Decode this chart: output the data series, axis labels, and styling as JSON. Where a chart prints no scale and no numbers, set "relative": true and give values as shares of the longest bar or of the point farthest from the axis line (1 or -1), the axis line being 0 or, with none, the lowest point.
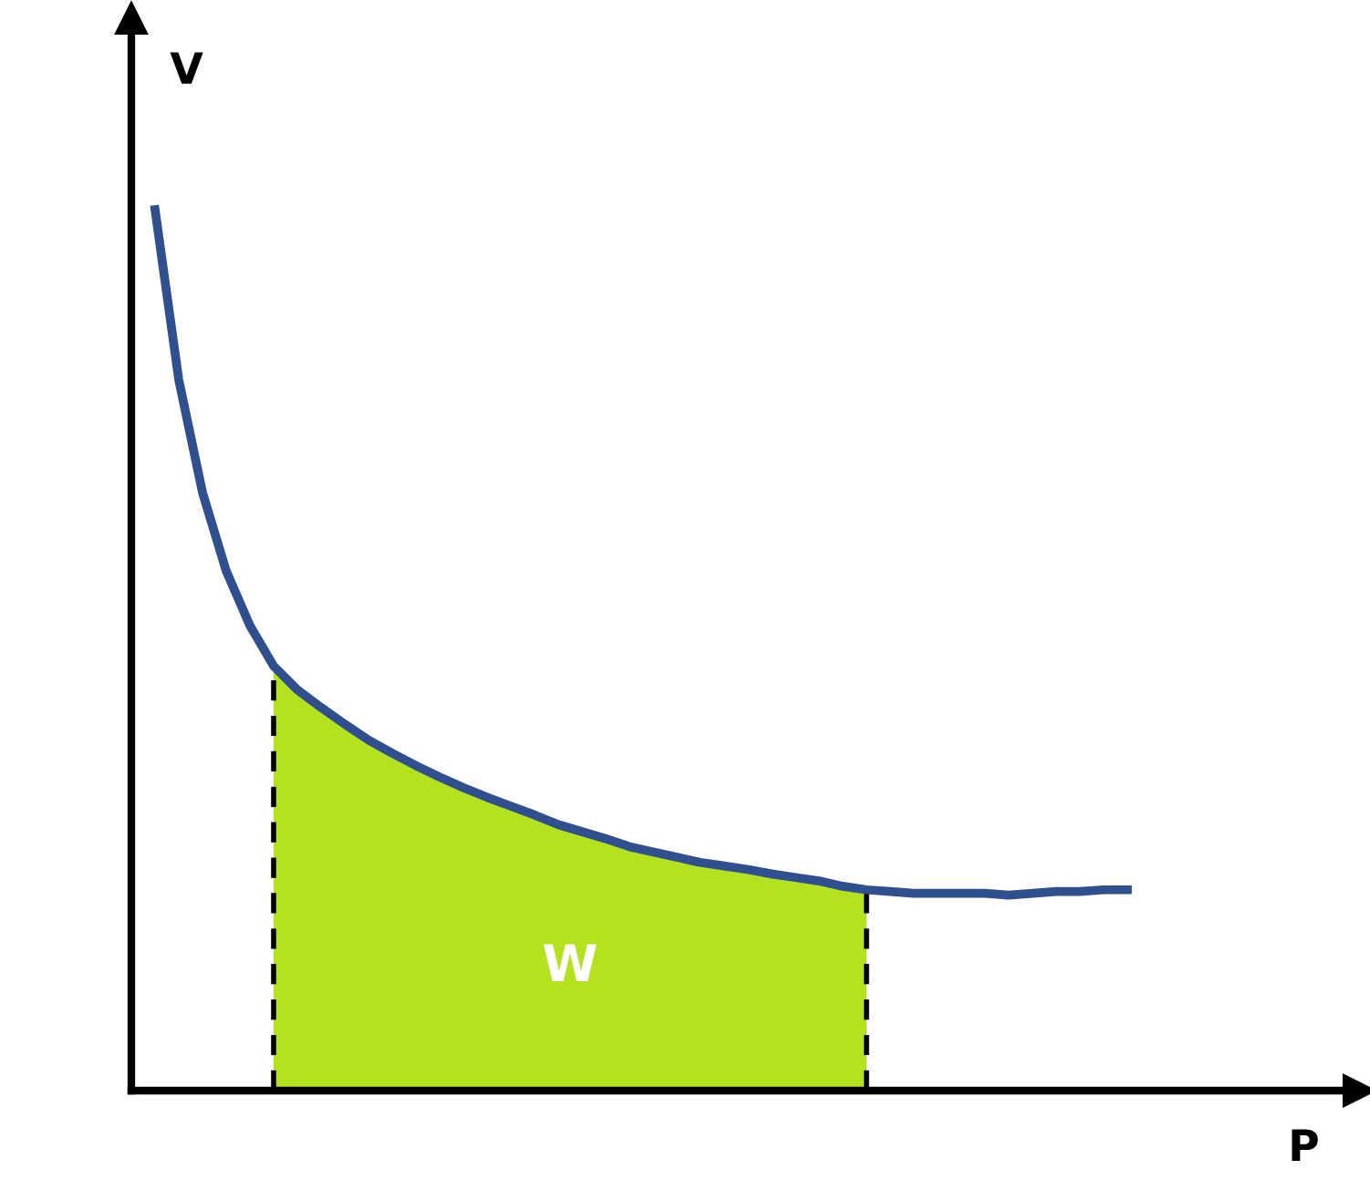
{
  "chart_data": {
    "type": "line",
    "relative": true,
    "xlabel": "P",
    "ylabel": "V",
    "categories": [
      null,
      null,
      null,
      null,
      null,
      null,
      null,
      null,
      null,
      null,
      null,
      null,
      null,
      null,
      null,
      null,
      null,
      null,
      null,
      null,
      null,
      null,
      null,
      null,
      null,
      null,
      null,
      null,
      null,
      null,
      null,
      null,
      null,
      null,
      null,
      null,
      null,
      null,
      null,
      null,
      null,
      null
    ],
    "series": [
      {
        "type": "area",
        "color": "#b5e21f",
        "line_style": "dashed",
        "values": [
          null,
          null,
          null,
          null,
          null,
          0.482,
          0.455,
          0.435,
          0.416,
          0.398,
          0.383,
          0.369,
          0.356,
          0.344,
          0.333,
          0.323,
          0.313,
          0.302,
          0.294,
          0.286,
          0.277,
          0.271,
          0.265,
          0.259,
          0.255,
          0.251,
          0.246,
          0.242,
          0.238,
          0.232,
          0.228,
          null,
          null,
          null,
          null,
          null,
          null,
          null,
          null,
          null,
          null,
          null
        ]
      },
      {
        "color": "#2f4f8f",
        "values": [
          1,
          0.807,
          0.679,
          0.59,
          0.528,
          0.482,
          0.455,
          0.435,
          0.416,
          0.398,
          0.383,
          0.369,
          0.356,
          0.344,
          0.333,
          0.323,
          0.313,
          0.302,
          0.294,
          0.286,
          0.277,
          0.271,
          0.265,
          0.259,
          0.255,
          0.251,
          0.246,
          0.242,
          0.238,
          0.232,
          0.228,
          0.226,
          0.224,
          0.224,
          0.224,
          0.224,
          0.222,
          0.224,
          0.226,
          0.226,
          0.228,
          0.228
        ]
      }
    ],
    "annotations": [
      "W"
    ]
  }
}
